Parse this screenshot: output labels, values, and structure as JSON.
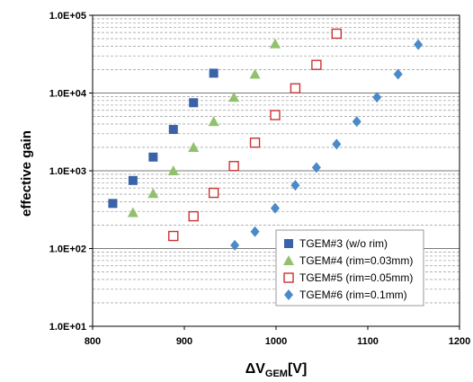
{
  "chart_data": {
    "type": "scatter",
    "title": "",
    "xlabel": {
      "prefix": "ΔV",
      "subscript": "GEM",
      "suffix": "[V]"
    },
    "ylabel": "effective gain",
    "xlim": [
      800,
      1200
    ],
    "ylim": [
      10,
      100000
    ],
    "yscale": "log",
    "x_ticks": [
      "800",
      "900",
      "1000",
      "1100",
      "1200"
    ],
    "y_ticks": [
      "1.0E+01",
      "1.0E+02",
      "1.0E+03",
      "1.0E+04",
      "1.0E+05"
    ],
    "grid": true,
    "legend_position": "bottom-right",
    "series": [
      {
        "name": "TGEM#3 (w/o rim)",
        "marker": "square",
        "color": "#3A62A8",
        "x": [
          822,
          844,
          866,
          888,
          910,
          932
        ],
        "y": [
          380,
          750,
          1500,
          3400,
          7500,
          18000
        ]
      },
      {
        "name": "TGEM#4 (rim=0.03mm)",
        "marker": "triangle",
        "color": "#92C16E",
        "x": [
          844,
          866,
          888,
          910,
          932,
          954,
          977,
          999
        ],
        "y": [
          290,
          510,
          1000,
          2000,
          4300,
          8800,
          17500,
          43000
        ]
      },
      {
        "name": "TGEM#5 (rim=0.05mm)",
        "marker": "open-square",
        "color": "#CC3333",
        "x": [
          888,
          910,
          932,
          954,
          977,
          999,
          1021,
          1044,
          1066
        ],
        "y": [
          145,
          260,
          520,
          1150,
          2300,
          5200,
          11500,
          23000,
          58000
        ]
      },
      {
        "name": "TGEM#6 (rim=0.1mm)",
        "marker": "diamond",
        "color": "#4A8AC8",
        "x": [
          955,
          977,
          999,
          1021,
          1044,
          1066,
          1088,
          1110,
          1133,
          1155
        ],
        "y": [
          110,
          165,
          330,
          650,
          1100,
          2200,
          4300,
          8800,
          17500,
          42000
        ]
      }
    ]
  }
}
